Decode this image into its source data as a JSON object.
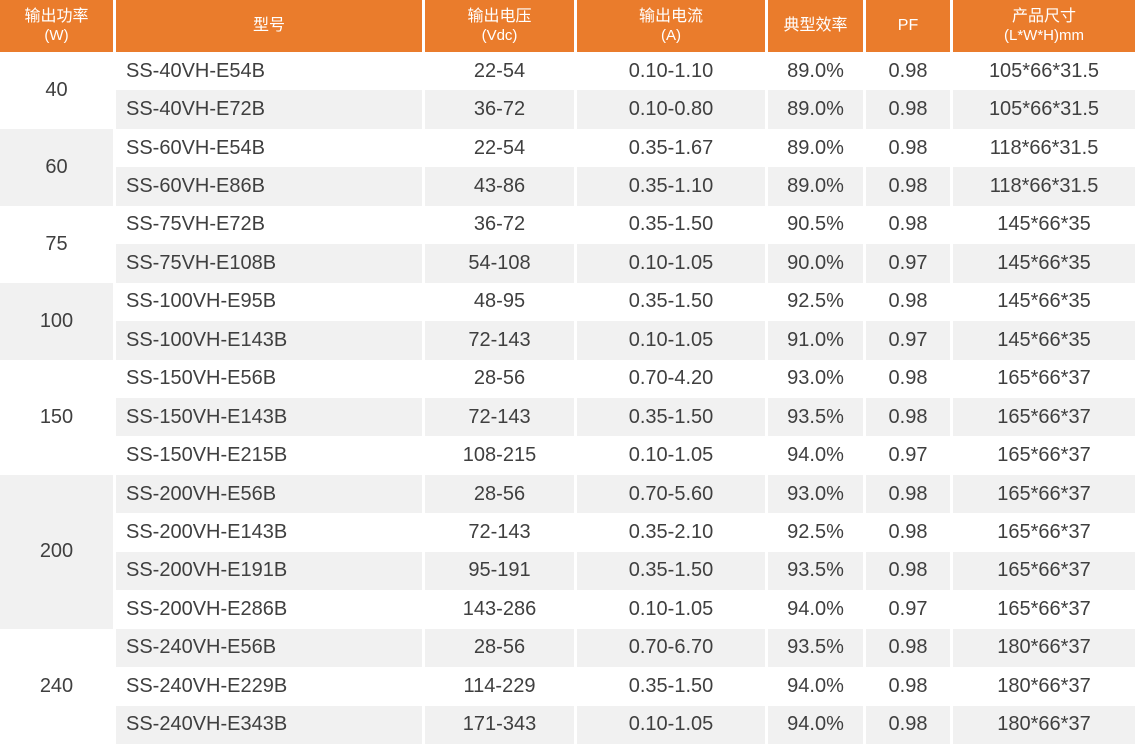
{
  "table": {
    "colors": {
      "header_bg": "#EA7C2C",
      "header_text": "#FFFFFF",
      "row_bg": "#FFFFFF",
      "row_alt_bg": "#F1F1F1",
      "body_text": "#3F3F3F"
    },
    "headers": [
      {
        "key": "power",
        "line1": "输出功率",
        "line2": "(W)"
      },
      {
        "key": "model",
        "line1": "型号",
        "line2": ""
      },
      {
        "key": "voltage",
        "line1": "输出电压",
        "line2": "(Vdc)"
      },
      {
        "key": "current",
        "line1": "输出电流",
        "line2": "(A)"
      },
      {
        "key": "efficiency",
        "line1": "典型效率",
        "line2": ""
      },
      {
        "key": "pf",
        "line1": "PF",
        "line2": ""
      },
      {
        "key": "size",
        "line1": "产品尺寸",
        "line2": "(L*W*H)mm"
      }
    ],
    "groups": [
      {
        "power": "40",
        "rows": [
          {
            "model": "SS-40VH-E54B",
            "voltage": "22-54",
            "current": "0.10-1.10",
            "efficiency": "89.0%",
            "pf": "0.98",
            "size": "105*66*31.5"
          },
          {
            "model": "SS-40VH-E72B",
            "voltage": "36-72",
            "current": "0.10-0.80",
            "efficiency": "89.0%",
            "pf": "0.98",
            "size": "105*66*31.5"
          }
        ]
      },
      {
        "power": "60",
        "rows": [
          {
            "model": "SS-60VH-E54B",
            "voltage": "22-54",
            "current": "0.35-1.67",
            "efficiency": "89.0%",
            "pf": "0.98",
            "size": "118*66*31.5"
          },
          {
            "model": "SS-60VH-E86B",
            "voltage": "43-86",
            "current": "0.35-1.10",
            "efficiency": "89.0%",
            "pf": "0.98",
            "size": "118*66*31.5"
          }
        ]
      },
      {
        "power": "75",
        "rows": [
          {
            "model": "SS-75VH-E72B",
            "voltage": "36-72",
            "current": "0.35-1.50",
            "efficiency": "90.5%",
            "pf": "0.98",
            "size": "145*66*35"
          },
          {
            "model": "SS-75VH-E108B",
            "voltage": "54-108",
            "current": "0.10-1.05",
            "efficiency": "90.0%",
            "pf": "0.97",
            "size": "145*66*35"
          }
        ]
      },
      {
        "power": "100",
        "rows": [
          {
            "model": "SS-100VH-E95B",
            "voltage": "48-95",
            "current": "0.35-1.50",
            "efficiency": "92.5%",
            "pf": "0.98",
            "size": "145*66*35"
          },
          {
            "model": "SS-100VH-E143B",
            "voltage": "72-143",
            "current": "0.10-1.05",
            "efficiency": "91.0%",
            "pf": "0.97",
            "size": "145*66*35"
          }
        ]
      },
      {
        "power": "150",
        "rows": [
          {
            "model": "SS-150VH-E56B",
            "voltage": "28-56",
            "current": "0.70-4.20",
            "efficiency": "93.0%",
            "pf": "0.98",
            "size": "165*66*37"
          },
          {
            "model": "SS-150VH-E143B",
            "voltage": "72-143",
            "current": "0.35-1.50",
            "efficiency": "93.5%",
            "pf": "0.98",
            "size": "165*66*37"
          },
          {
            "model": "SS-150VH-E215B",
            "voltage": "108-215",
            "current": "0.10-1.05",
            "efficiency": "94.0%",
            "pf": "0.97",
            "size": "165*66*37"
          }
        ]
      },
      {
        "power": "200",
        "rows": [
          {
            "model": "SS-200VH-E56B",
            "voltage": "28-56",
            "current": "0.70-5.60",
            "efficiency": "93.0%",
            "pf": "0.98",
            "size": "165*66*37"
          },
          {
            "model": "SS-200VH-E143B",
            "voltage": "72-143",
            "current": "0.35-2.10",
            "efficiency": "92.5%",
            "pf": "0.98",
            "size": "165*66*37"
          },
          {
            "model": "SS-200VH-E191B",
            "voltage": "95-191",
            "current": "0.35-1.50",
            "efficiency": "93.5%",
            "pf": "0.98",
            "size": "165*66*37"
          },
          {
            "model": "SS-200VH-E286B",
            "voltage": "143-286",
            "current": "0.10-1.05",
            "efficiency": "94.0%",
            "pf": "0.97",
            "size": "165*66*37"
          }
        ]
      },
      {
        "power": "240",
        "rows": [
          {
            "model": "SS-240VH-E56B",
            "voltage": "28-56",
            "current": "0.70-6.70",
            "efficiency": "93.5%",
            "pf": "0.98",
            "size": "180*66*37"
          },
          {
            "model": "SS-240VH-E229B",
            "voltage": "114-229",
            "current": "0.35-1.50",
            "efficiency": "94.0%",
            "pf": "0.98",
            "size": "180*66*37"
          },
          {
            "model": "SS-240VH-E343B",
            "voltage": "171-343",
            "current": "0.10-1.05",
            "efficiency": "94.0%",
            "pf": "0.98",
            "size": "180*66*37"
          }
        ]
      }
    ]
  }
}
